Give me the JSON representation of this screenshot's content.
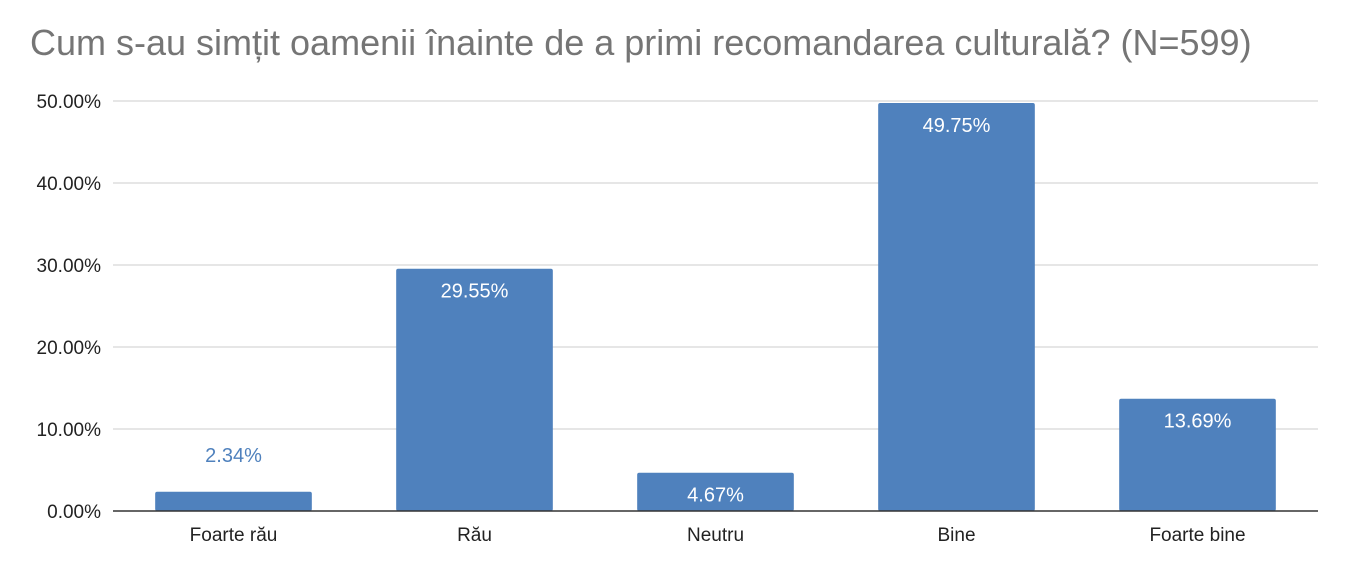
{
  "chart_data": {
    "type": "bar",
    "title": "Cum s-au simțit oamenii înainte de a primi recomandarea culturală? (N=599)",
    "xlabel": "",
    "ylabel": "",
    "categories": [
      "Foarte rău",
      "Rău",
      "Neutru",
      "Bine",
      "Foarte bine"
    ],
    "values": [
      2.34,
      29.55,
      4.67,
      49.75,
      13.69
    ],
    "data_labels": [
      "2.34%",
      "29.55%",
      "4.67%",
      "49.75%",
      "13.69%"
    ],
    "ylim": [
      0,
      50
    ],
    "yticks": [
      0,
      10,
      20,
      30,
      40,
      50
    ],
    "ytick_labels": [
      "0.00%",
      "10.00%",
      "20.00%",
      "30.00%",
      "40.00%",
      "50.00%"
    ],
    "grid": true,
    "legend": "none",
    "colors": {
      "bar": "#4f81bd",
      "grid": "#cccccc",
      "axis": "#333333"
    }
  }
}
